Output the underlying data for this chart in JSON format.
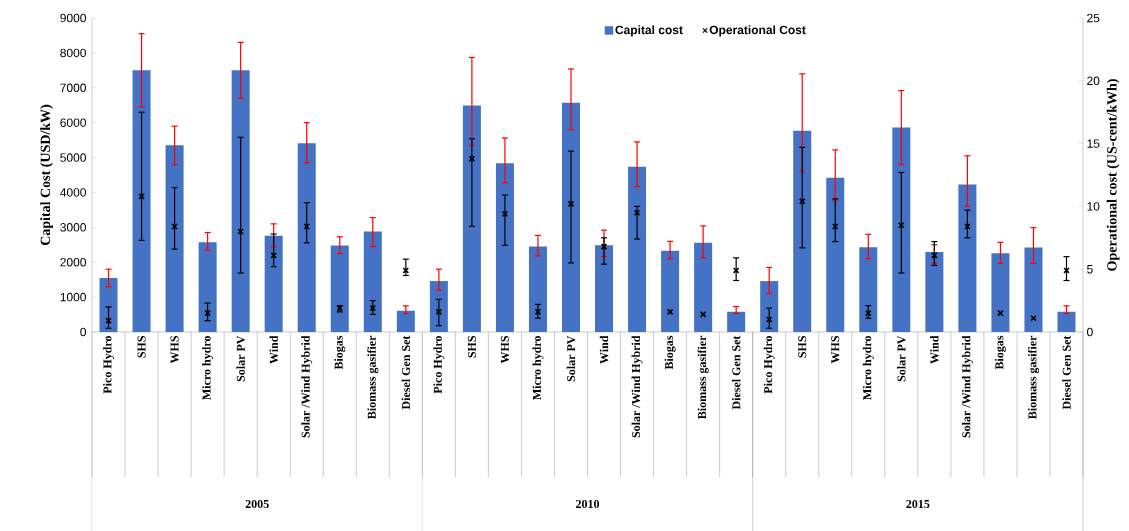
{
  "chart_data": {
    "type": "bar",
    "ylabel": "Capital Cost (USD/kW)",
    "y2label": "Operational cost (US-cent/kWh)",
    "categories": [
      "Pico Hydro",
      "SHS",
      "WHS",
      "Micro hydro",
      "Solar PV",
      "Wind",
      "Solar /Wind Hybrid",
      "Biogas",
      "Biomass gasifier",
      "Diesel Gen Set",
      "Pico Hydro",
      "SHS",
      "WHS",
      "Micro hydro",
      "Solar PV",
      "Wind",
      "Solar /Wind Hybrid",
      "Biogas",
      "Biomass gasifier",
      "Diesel Gen Set",
      "Pico Hydro",
      "SHS",
      "WHS",
      "Micro hydro",
      "Solar PV",
      "Wind",
      "Solar /Wind Hybrid",
      "Biogas",
      "Biomass gasifier",
      "Diesel Gen Set"
    ],
    "annotations": [
      "2005",
      "2010",
      "2015"
    ],
    "series": [
      {
        "name": "Capital cost",
        "color": "#4472c4",
        "values": [
          1550,
          7500,
          5350,
          2570,
          7500,
          2760,
          5410,
          2480,
          2880,
          610,
          1460,
          6490,
          4840,
          2450,
          6570,
          2490,
          4740,
          2330,
          2560,
          580,
          1460,
          5770,
          4420,
          2430,
          5860,
          2290,
          4230,
          2260,
          2420,
          580
        ],
        "errors": [
          [
            1300,
            1800
          ],
          [
            6450,
            8550
          ],
          [
            4800,
            5900
          ],
          [
            2350,
            2850
          ],
          [
            6700,
            8300
          ],
          [
            2450,
            3100
          ],
          [
            4850,
            6000
          ],
          [
            2250,
            2730
          ],
          [
            2450,
            3280
          ],
          [
            530,
            750
          ],
          [
            1200,
            1800
          ],
          [
            5350,
            7870
          ],
          [
            4280,
            5560
          ],
          [
            2180,
            2770
          ],
          [
            5800,
            7540
          ],
          [
            2160,
            2920
          ],
          [
            4170,
            5450
          ],
          [
            2100,
            2600
          ],
          [
            2130,
            3040
          ],
          [
            530,
            730
          ],
          [
            1100,
            1850
          ],
          [
            4600,
            7400
          ],
          [
            3780,
            5220
          ],
          [
            2100,
            2800
          ],
          [
            4800,
            6920
          ],
          [
            1970,
            2500
          ],
          [
            3600,
            5050
          ],
          [
            1970,
            2570
          ],
          [
            1970,
            2990
          ],
          [
            530,
            750
          ]
        ]
      },
      {
        "name": "Operational Cost",
        "type": "scatter",
        "axis": "y2",
        "marker": "cross",
        "color": "#000000",
        "values": [
          0.9,
          10.8,
          8.4,
          1.5,
          8.0,
          6.1,
          8.4,
          1.9,
          1.9,
          4.9,
          1.6,
          13.8,
          9.4,
          1.6,
          10.2,
          6.8,
          9.5,
          1.6,
          1.4,
          4.9,
          1.0,
          10.4,
          8.4,
          1.5,
          8.5,
          6.1,
          8.4,
          1.5,
          1.1,
          4.9
        ],
        "errors": [
          [
            0.3,
            2.0
          ],
          [
            7.3,
            17.5
          ],
          [
            6.6,
            11.5
          ],
          [
            0.9,
            2.3
          ],
          [
            4.7,
            15.5
          ],
          [
            5.2,
            7.8
          ],
          [
            7.1,
            10.3
          ],
          [
            1.6,
            2.1
          ],
          [
            1.4,
            2.5
          ],
          [
            4.5,
            5.8
          ],
          [
            0.5,
            2.6
          ],
          [
            8.4,
            15.4
          ],
          [
            6.9,
            10.9
          ],
          [
            1.1,
            2.2
          ],
          [
            5.5,
            14.4
          ],
          [
            5.4,
            7.5
          ],
          [
            7.4,
            10.0
          ],
          null,
          null,
          [
            4.1,
            5.9
          ],
          [
            0.3,
            1.9
          ],
          [
            6.7,
            14.7
          ],
          [
            7.2,
            10.6
          ],
          [
            1.1,
            2.1
          ],
          [
            4.7,
            12.7
          ],
          [
            5.3,
            7.2
          ],
          [
            7.5,
            9.7
          ],
          null,
          null,
          [
            4.1,
            6.0
          ]
        ]
      }
    ],
    "ylim": [
      0,
      9000
    ],
    "yticks": [
      0,
      1000,
      2000,
      3000,
      4000,
      5000,
      6000,
      7000,
      8000,
      9000
    ],
    "y2lim": [
      0,
      25
    ],
    "y2ticks": [
      0,
      5,
      10,
      15,
      20,
      25
    ],
    "legend": "top",
    "grid": false
  }
}
